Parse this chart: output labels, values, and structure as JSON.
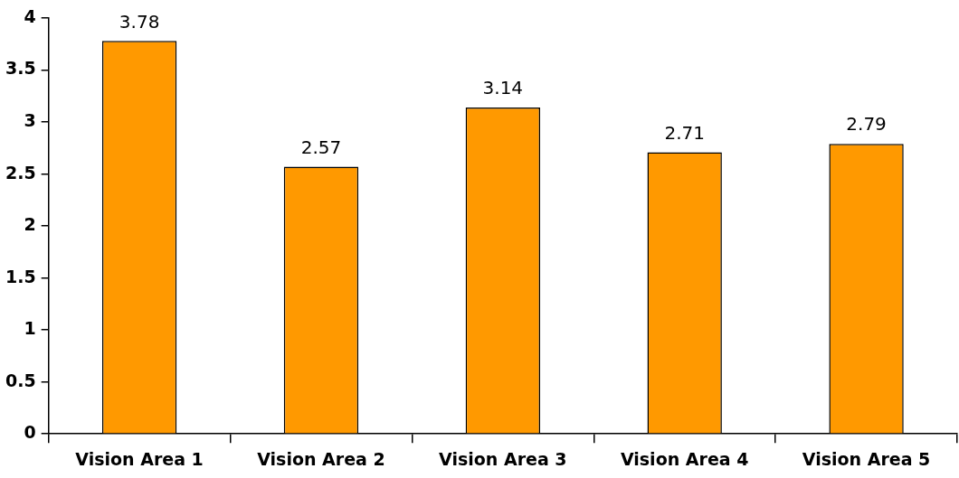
{
  "chart_data": {
    "type": "bar",
    "categories": [
      "Vision Area 1",
      "Vision Area 2",
      "Vision Area 3",
      "Vision Area 4",
      "Vision Area 5"
    ],
    "values": [
      3.78,
      2.57,
      3.14,
      2.71,
      2.79
    ],
    "color": "#ff9900",
    "ylim": [
      0,
      4
    ],
    "yticks": [
      0,
      0.5,
      1,
      1.5,
      2,
      2.5,
      3,
      3.5,
      4
    ],
    "grid": false,
    "legend": false,
    "data_labels": true
  }
}
